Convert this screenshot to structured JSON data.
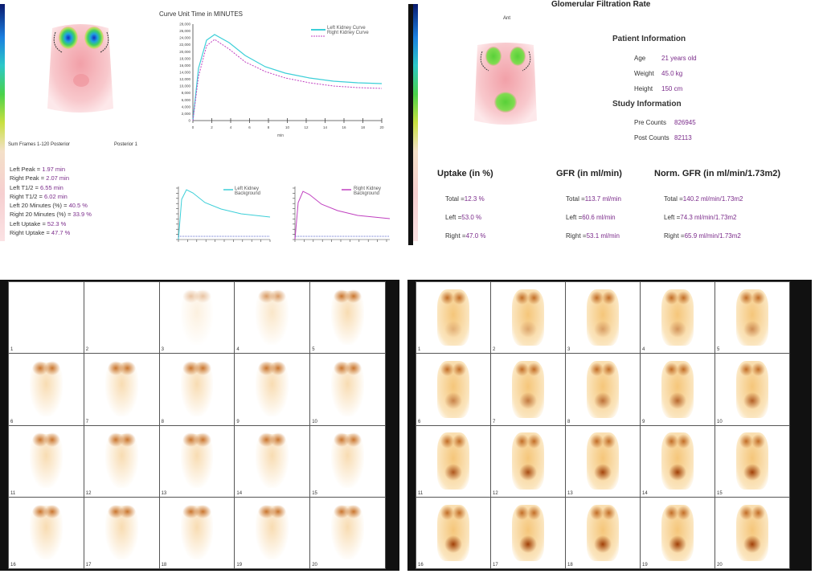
{
  "left_report": {
    "curve_title": "Curve Unit Time in MINUTES",
    "main_legend": [
      "Left Kidney Curve",
      "Right Kidney Curve"
    ],
    "y_ticks": [
      "28,000",
      "26,000",
      "24,000",
      "22,000",
      "20,000",
      "18,000",
      "16,000",
      "14,000",
      "12,000",
      "10,000",
      "8,000",
      "6,000",
      "4,000",
      "2,000",
      "0"
    ],
    "x_ticks": [
      "0",
      "2",
      "4",
      "6",
      "8",
      "10",
      "12",
      "14",
      "16",
      "18",
      "20"
    ],
    "image_caption_left": "Sum Frames 1-120 Posterior",
    "image_caption_right": "Posterior 1",
    "stats": [
      {
        "label": "Left Peak = ",
        "value": "1.97 min"
      },
      {
        "label": "Right Peak = ",
        "value": "2.07 min"
      },
      {
        "label": "Left T1/2 = ",
        "value": "6.55 min"
      },
      {
        "label": "Right T1/2 = ",
        "value": "6.02 min"
      },
      {
        "label": "Left 20 Minutes (%) = ",
        "value": "40.5 %"
      },
      {
        "label": "Right 20 Minutes (%) = ",
        "value": "33.9 %"
      },
      {
        "label": "Left Uptake = ",
        "value": "52.3 %"
      },
      {
        "label": "Right Uptake = ",
        "value": "47.7 %"
      }
    ],
    "small_legend_left": [
      "Left Kidney",
      "Background"
    ],
    "small_legend_right": [
      "Right Kidney",
      "Background"
    ]
  },
  "right_report": {
    "title": "Glomerular Filtration Rate",
    "image_label": "Ant",
    "patient_info_heading": "Patient Information",
    "patient_info": [
      {
        "label": "Age",
        "value": "21 years old"
      },
      {
        "label": "Weight",
        "value": "45.0 kg"
      },
      {
        "label": "Height",
        "value": "150 cm"
      }
    ],
    "study_info_heading": "Study Information",
    "study_info": [
      {
        "label": "Pre Counts",
        "value": "826945"
      },
      {
        "label": "Post Counts",
        "value": "82113"
      }
    ],
    "uptake": {
      "heading": "Uptake (in %)",
      "rows": [
        {
          "label": "Total = ",
          "value": "12.3 %"
        },
        {
          "label": "Left = ",
          "value": "53.0 %"
        },
        {
          "label": "Right = ",
          "value": "47.0 %"
        }
      ]
    },
    "gfr": {
      "heading": "GFR (in ml/min)",
      "rows": [
        {
          "label": "Total = ",
          "value": "113.7 ml/min"
        },
        {
          "label": "Left = ",
          "value": "60.6 ml/min"
        },
        {
          "label": "Right = ",
          "value": "53.1 ml/min"
        }
      ]
    },
    "norm_gfr": {
      "heading": "Norm. GFR (in ml/min/1.73m2)",
      "rows": [
        {
          "label": "Total = ",
          "value": "140.2 ml/min/1.73m2"
        },
        {
          "label": "Left = ",
          "value": "74.3 ml/min/1.73m2"
        },
        {
          "label": "Right = ",
          "value": "65.9 ml/min/1.73m2"
        }
      ]
    }
  },
  "left_frames": [
    "1",
    "2",
    "3",
    "4",
    "5",
    "6",
    "7",
    "8",
    "9",
    "10",
    "11",
    "12",
    "13",
    "14",
    "15",
    "16",
    "17",
    "18",
    "19",
    "20"
  ],
  "right_frames": [
    "1",
    "2",
    "3",
    "4",
    "5",
    "6",
    "7",
    "8",
    "9",
    "10",
    "11",
    "12",
    "13",
    "14",
    "15",
    "16",
    "17",
    "18",
    "19",
    "20"
  ],
  "colors": {
    "cyan_curve": "#3ccfd8",
    "magenta_curve": "#c040c0",
    "value_purple": "#7a2a8a",
    "scan_orange": "#e8a030"
  }
}
